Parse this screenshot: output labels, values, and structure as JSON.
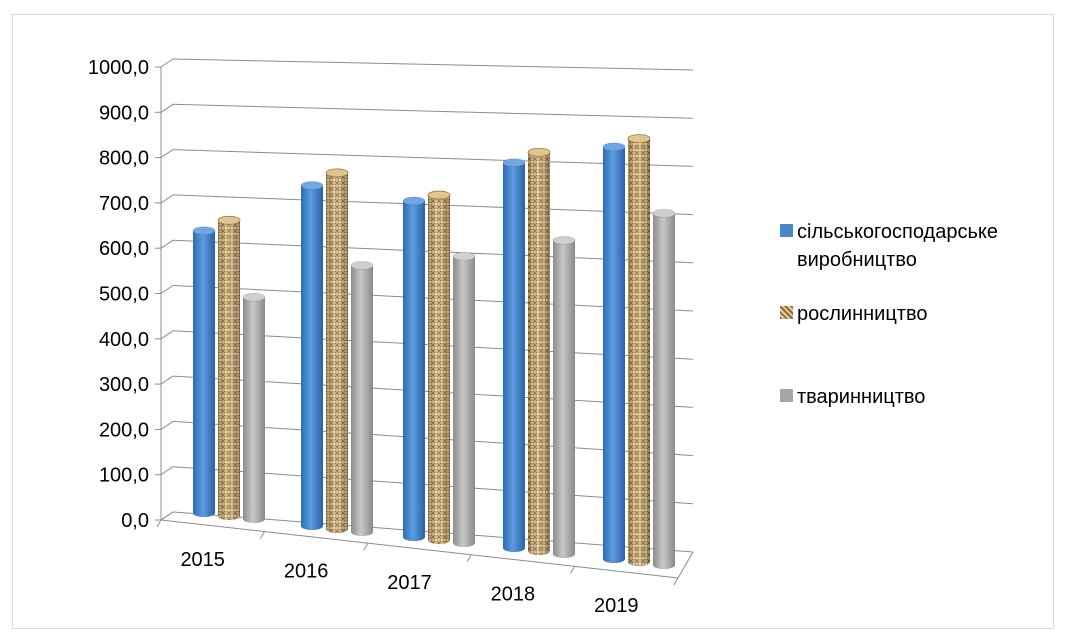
{
  "chart_data": {
    "type": "bar",
    "categories": [
      "2015",
      "2016",
      "2017",
      "2018",
      "2019"
    ],
    "series": [
      {
        "name": "сільськогосподарське виробництво",
        "values": [
          630,
          760,
          750,
          860,
          920
        ],
        "color": "#4a86c8"
      },
      {
        "name": "рослинництво",
        "values": [
          660,
          795,
          770,
          890,
          945
        ],
        "color": "#c9a26a"
      },
      {
        "name": "тваринництво",
        "values": [
          495,
          595,
          640,
          700,
          785
        ],
        "color": "#a6a6a6"
      }
    ],
    "y_ticks": [
      "0,0",
      "100,0",
      "200,0",
      "300,0",
      "400,0",
      "500,0",
      "600,0",
      "700,0",
      "800,0",
      "900,0",
      "1000,0"
    ],
    "ylim": [
      0,
      1000
    ],
    "grid": true,
    "legend_position": "right",
    "style": "3d-cylinder"
  }
}
